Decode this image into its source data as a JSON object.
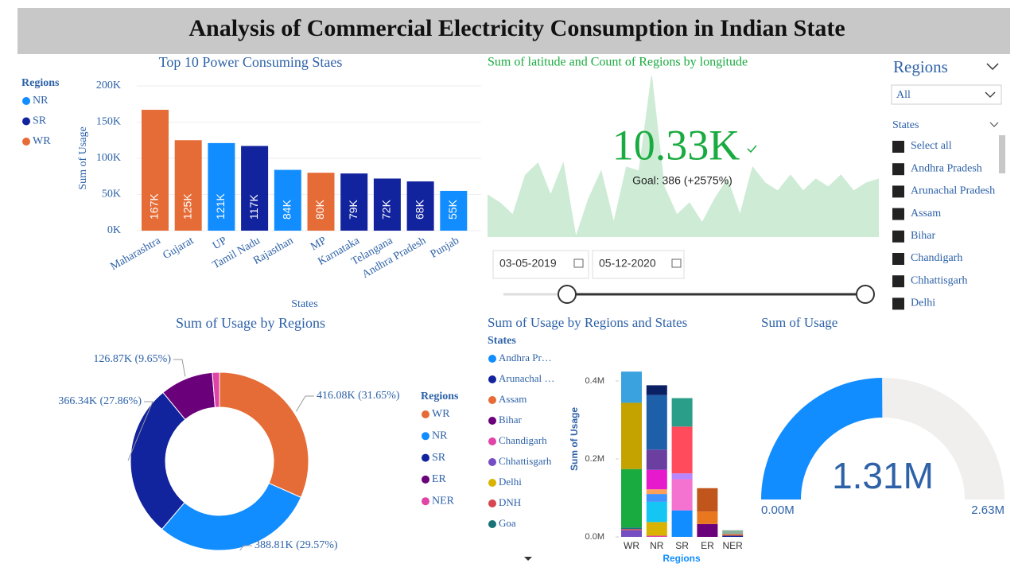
{
  "header": {
    "title": "Analysis of Commercial Electricity Consumption in Indian State"
  },
  "chart_data": [
    {
      "type": "bar",
      "title": "Top 10 Power Consuming Staes",
      "x_label": "States",
      "y_label": "Sum of Usage",
      "categories": [
        "Maharashtra",
        "Gujarat",
        "UP",
        "Tamil Nadu",
        "Rajasthan",
        "MP",
        "Karnataka",
        "Telangana",
        "Andhra Pradesh",
        "Punjab"
      ],
      "values": [
        167000,
        125000,
        121000,
        117000,
        84000,
        80000,
        79000,
        72000,
        68000,
        55000
      ],
      "value_labels": [
        "167K",
        "125K",
        "121K",
        "117K",
        "84K",
        "80K",
        "79K",
        "72K",
        "68K",
        "55K"
      ],
      "colors": [
        "#E66C37",
        "#E66C37",
        "#118DFF",
        "#12239E",
        "#118DFF",
        "#E66C37",
        "#12239E",
        "#12239E",
        "#12239E",
        "#118DFF"
      ],
      "legend_title": "Regions",
      "legend": [
        {
          "name": "NR",
          "color": "#118DFF"
        },
        {
          "name": "SR",
          "color": "#12239E"
        },
        {
          "name": "WR",
          "color": "#E66C37"
        }
      ],
      "ylim": [
        0,
        200000
      ],
      "yticks": [
        {
          "value": 0,
          "label": "0K"
        },
        {
          "value": 50000,
          "label": "50K"
        },
        {
          "value": 100000,
          "label": "100K"
        },
        {
          "value": 150000,
          "label": "150K"
        },
        {
          "value": 200000,
          "label": "200K"
        }
      ],
      "grid": true
    },
    {
      "type": "area",
      "title": "Sum of latitude and Count of Regions by longitude",
      "values": [
        53,
        43,
        28,
        78,
        93,
        53,
        93,
        0,
        48,
        83,
        18,
        88,
        83,
        203,
        63,
        28,
        43,
        18,
        48,
        73,
        28,
        88,
        68,
        58,
        78,
        58,
        73,
        63,
        78,
        58,
        68,
        73
      ],
      "ylim": [
        0,
        210
      ],
      "color": "#CDEBD5",
      "kpi": {
        "value": 10330,
        "label": "10.33K",
        "goal": "Goal: 386 (+2575%)",
        "color": "#1AAB40"
      }
    },
    {
      "type": "donut",
      "title": "Sum of Usage by Regions",
      "legend_title": "Regions",
      "categories": [
        "WR",
        "NR",
        "SR",
        "ER",
        "NER"
      ],
      "values": [
        416080,
        388810,
        366340,
        126870,
        17000
      ],
      "value_labels": [
        "416.08K (31.65%)",
        "388.81K (29.57%)",
        "366.34K (27.86%)",
        "126.87K (9.65%)",
        null
      ],
      "colors": [
        "#E66C37",
        "#118DFF",
        "#12239E",
        "#6B007B",
        "#E044A7"
      ]
    },
    {
      "type": "stacked_bar",
      "title": "Sum of Usage by Regions and States",
      "x_label": "Regions",
      "y_label": "Sum of Usage",
      "legend_title": "States",
      "categories": [
        "WR",
        "NR",
        "SR",
        "ER",
        "NER"
      ],
      "series": [
        {
          "name": "Andhra Pr…",
          "color": "#118DFF",
          "values": [
            0,
            0,
            68000,
            0,
            0
          ]
        },
        {
          "name": "Arunachal …",
          "color": "#12239E",
          "values": [
            0,
            0,
            0,
            0,
            3000
          ]
        },
        {
          "name": "Assam",
          "color": "#E66C37",
          "values": [
            0,
            0,
            0,
            0,
            4000
          ]
        },
        {
          "name": "Bihar",
          "color": "#6B007B",
          "values": [
            0,
            0,
            0,
            33000,
            0
          ]
        },
        {
          "name": "Chandigarh",
          "color": "#E044A7",
          "values": [
            0,
            3000,
            0,
            0,
            0
          ]
        },
        {
          "name": "Chhattisgarh",
          "color": "#744EC2",
          "values": [
            17000,
            0,
            0,
            0,
            0
          ]
        },
        {
          "name": "Delhi",
          "color": "#D9B300",
          "values": [
            0,
            35000,
            0,
            0,
            0
          ]
        },
        {
          "name": "DNH",
          "color": "#D64550",
          "values": [
            3000,
            0,
            0,
            0,
            0
          ]
        },
        {
          "name": "Goa",
          "color": "#197278",
          "values": [
            4000,
            0,
            0,
            0,
            0
          ]
        },
        {
          "name": null,
          "color": "#1AAB40",
          "values": [
            150000,
            0,
            0,
            0,
            0
          ]
        },
        {
          "name": null,
          "color": "#15C6F4",
          "values": [
            0,
            52000,
            0,
            0,
            0
          ]
        },
        {
          "name": null,
          "color": "#4092FF",
          "values": [
            0,
            20000,
            0,
            0,
            0
          ]
        },
        {
          "name": null,
          "color": "#FFA058",
          "values": [
            0,
            12000,
            0,
            0,
            0
          ]
        },
        {
          "name": null,
          "color": "#F472D0",
          "values": [
            0,
            0,
            80000,
            0,
            0
          ]
        },
        {
          "name": null,
          "color": "#C4A200",
          "values": [
            170000,
            0,
            0,
            0,
            0
          ]
        },
        {
          "name": null,
          "color": "#E61ACC",
          "values": [
            0,
            50000,
            0,
            0,
            0
          ]
        },
        {
          "name": null,
          "color": "#6A3FA0",
          "values": [
            0,
            52000,
            0,
            0,
            0
          ]
        },
        {
          "name": null,
          "color": "#B887FF",
          "values": [
            0,
            0,
            15000,
            0,
            0
          ]
        },
        {
          "name": null,
          "color": "#FF4B5C",
          "values": [
            0,
            0,
            120000,
            0,
            0
          ]
        },
        {
          "name": null,
          "color": "#E8771E",
          "values": [
            0,
            0,
            0,
            32000,
            0
          ]
        },
        {
          "name": null,
          "color": "#C0561C",
          "values": [
            0,
            0,
            0,
            60000,
            0
          ]
        },
        {
          "name": null,
          "color": "#1E5FAA",
          "values": [
            0,
            140000,
            0,
            0,
            0
          ]
        },
        {
          "name": null,
          "color": "#0B1F63",
          "values": [
            0,
            25000,
            0,
            0,
            0
          ]
        },
        {
          "name": null,
          "color": "#2B9E8A",
          "values": [
            0,
            0,
            73000,
            0,
            0
          ]
        },
        {
          "name": null,
          "color": "#3AA2DF",
          "values": [
            80000,
            0,
            0,
            0,
            0
          ]
        },
        {
          "name": null,
          "color": "#8AB0A0",
          "values": [
            0,
            0,
            0,
            0,
            10000
          ]
        }
      ],
      "ylim": [
        0,
        440000
      ],
      "yticks": [
        {
          "value": 0,
          "label": "0.0M"
        },
        {
          "value": 200000,
          "label": "0.2M"
        },
        {
          "value": 400000,
          "label": "0.4M"
        }
      ]
    },
    {
      "type": "gauge",
      "title": "Sum of Usage",
      "value": 1310000,
      "value_label": "1.31M",
      "min": 0,
      "min_label": "0.00M",
      "max": 2630000,
      "max_label": "2.63M",
      "color": "#118DFF",
      "track_color": "#F0EFEE"
    }
  ],
  "slicers": {
    "regions": {
      "title": "Regions",
      "selected": "All"
    },
    "states": {
      "title": "States",
      "items": [
        "Select all",
        "Andhra Pradesh",
        "Arunachal Pradesh",
        "Assam",
        "Bihar",
        "Chandigarh",
        "Chhattisgarh",
        "Delhi"
      ]
    },
    "dates": {
      "start": "03-05-2019",
      "end": "05-12-2020"
    }
  }
}
